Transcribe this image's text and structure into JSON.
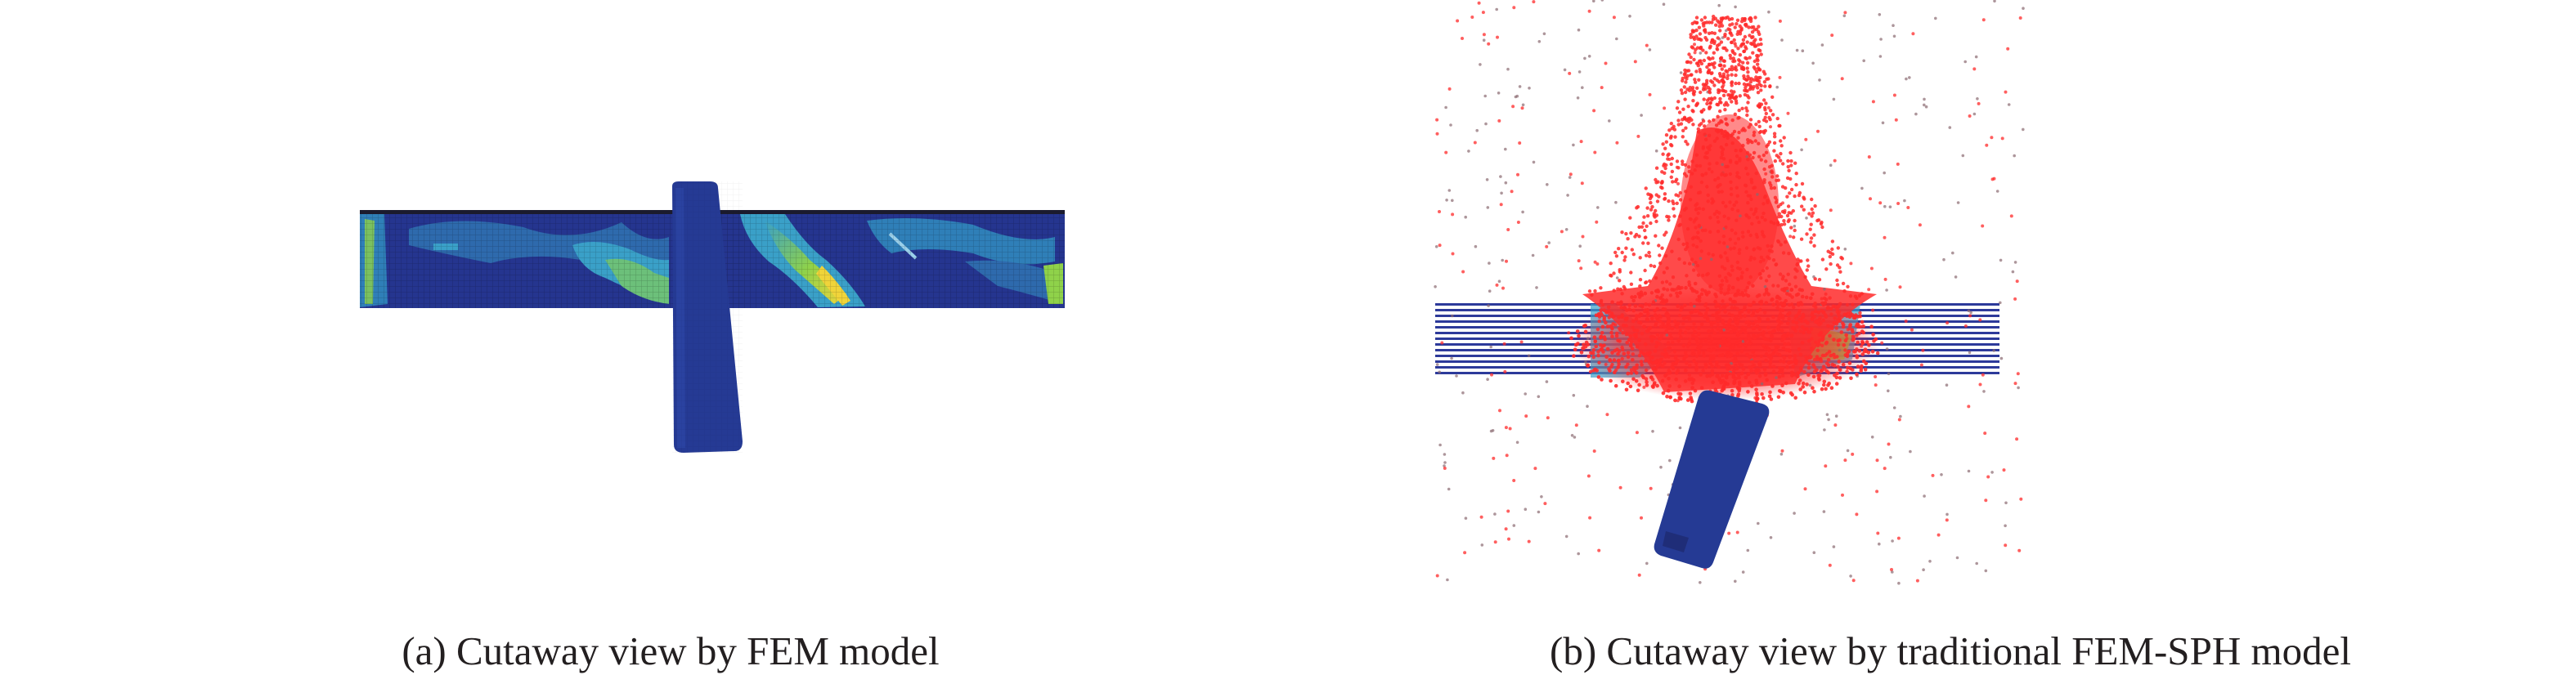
{
  "figure": {
    "panel_a": {
      "caption": "(a) Cutaway view by FEM model",
      "colors": {
        "base": "#25358f",
        "mid": "#3aa0c8",
        "hot": "#8fd24a",
        "peak": "#f0d43a"
      }
    },
    "panel_b": {
      "caption": "(b) Cutaway view by traditional FEM-SPH model",
      "colors": {
        "base": "#25358f",
        "particle": "#ff2a2a",
        "debris": "#8a6a70",
        "hot": "#8fd24a"
      }
    }
  }
}
